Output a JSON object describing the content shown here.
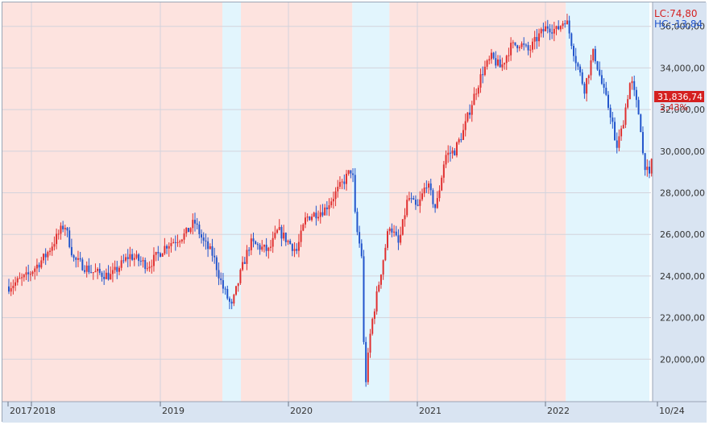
{
  "chart_data": {
    "type": "candlestick",
    "y_ticks": [
      "36,000,00",
      "34,000,00",
      "32,000,00",
      "30,000,00",
      "28,000,00",
      "26,000,00",
      "24,000,00",
      "22,000,00",
      "20,000,00"
    ],
    "y_tick_values": [
      36000,
      34000,
      32000,
      30000,
      28000,
      26000,
      24000,
      22000,
      20000
    ],
    "ylim": [
      18000,
      37150
    ],
    "x_labels": [
      "2017",
      "2018",
      "2019",
      "2020",
      "2021",
      "2022",
      "10/24"
    ],
    "legend": {
      "lc": "LC:74,80",
      "hc": "HC:-13,84"
    },
    "last_price": "31,836,74",
    "change_pct": "2,43%",
    "colors": {
      "up": "#e03030",
      "down": "#2255cc",
      "pink_band": "#fde3df",
      "blue_band": "#e2f5fd",
      "axis_bg": "#d9e4f2",
      "last_box": "#d42020"
    },
    "regimes": [
      {
        "from": "2017-01",
        "to": "2018-12",
        "color": "pink"
      },
      {
        "from": "2018-12",
        "to": "2019-02",
        "color": "blue"
      },
      {
        "from": "2019-02",
        "to": "2020-02",
        "color": "pink"
      },
      {
        "from": "2020-02",
        "to": "2020-06",
        "color": "blue"
      },
      {
        "from": "2020-06",
        "to": "2022-01",
        "color": "pink"
      },
      {
        "from": "2022-01",
        "to": "2022-10",
        "color": "blue"
      }
    ],
    "path": [
      {
        "d": "2017-01",
        "v": 23500
      },
      {
        "d": "2017-03",
        "v": 24000
      },
      {
        "d": "2017-05",
        "v": 25000
      },
      {
        "d": "2017-07",
        "v": 26500
      },
      {
        "d": "2017-08",
        "v": 24800
      },
      {
        "d": "2017-10",
        "v": 24200
      },
      {
        "d": "2017-12",
        "v": 24000
      },
      {
        "d": "2018-02",
        "v": 25000
      },
      {
        "d": "2018-04",
        "v": 24500
      },
      {
        "d": "2018-06",
        "v": 25500
      },
      {
        "d": "2018-08",
        "v": 26000
      },
      {
        "d": "2018-09",
        "v": 26600
      },
      {
        "d": "2018-10",
        "v": 25600
      },
      {
        "d": "2018-11",
        "v": 25000
      },
      {
        "d": "2018-12",
        "v": 23500
      },
      {
        "d": "2019-01",
        "v": 22500
      },
      {
        "d": "2019-02",
        "v": 24200
      },
      {
        "d": "2019-03",
        "v": 25600
      },
      {
        "d": "2019-05",
        "v": 25200
      },
      {
        "d": "2019-06",
        "v": 26200
      },
      {
        "d": "2019-08",
        "v": 25200
      },
      {
        "d": "2019-09",
        "v": 26800
      },
      {
        "d": "2019-11",
        "v": 27200
      },
      {
        "d": "2020-01",
        "v": 28500
      },
      {
        "d": "2020-02",
        "v": 29200
      },
      {
        "d": "2020-02",
        "v": 26500
      },
      {
        "d": "2020-03",
        "v": 25000
      },
      {
        "d": "2020-03",
        "v": 18500
      },
      {
        "d": "2020-04",
        "v": 21500
      },
      {
        "d": "2020-05",
        "v": 24000
      },
      {
        "d": "2020-06",
        "v": 26500
      },
      {
        "d": "2020-07",
        "v": 25500
      },
      {
        "d": "2020-08",
        "v": 27800
      },
      {
        "d": "2020-09",
        "v": 27200
      },
      {
        "d": "2020-10",
        "v": 28500
      },
      {
        "d": "2020-11",
        "v": 27200
      },
      {
        "d": "2020-12",
        "v": 29800
      },
      {
        "d": "2021-01",
        "v": 30000
      },
      {
        "d": "2021-02",
        "v": 31000
      },
      {
        "d": "2021-03",
        "v": 32500
      },
      {
        "d": "2021-04",
        "v": 33800
      },
      {
        "d": "2021-05",
        "v": 34500
      },
      {
        "d": "2021-06",
        "v": 34000
      },
      {
        "d": "2021-07",
        "v": 35000
      },
      {
        "d": "2021-08",
        "v": 35200
      },
      {
        "d": "2021-09",
        "v": 34800
      },
      {
        "d": "2021-10",
        "v": 35500
      },
      {
        "d": "2021-11",
        "v": 36000
      },
      {
        "d": "2021-12",
        "v": 35800
      },
      {
        "d": "2022-01",
        "v": 36400
      },
      {
        "d": "2022-02",
        "v": 34500
      },
      {
        "d": "2022-03",
        "v": 33000
      },
      {
        "d": "2022-04",
        "v": 34800
      },
      {
        "d": "2022-05",
        "v": 33000
      },
      {
        "d": "2022-06",
        "v": 31500
      },
      {
        "d": "2022-06",
        "v": 30000
      },
      {
        "d": "2022-07",
        "v": 31000
      },
      {
        "d": "2022-08",
        "v": 33500
      },
      {
        "d": "2022-09",
        "v": 31500
      },
      {
        "d": "2022-09",
        "v": 29600
      },
      {
        "d": "2022-10",
        "v": 28700
      },
      {
        "d": "2022-10",
        "v": 30000
      },
      {
        "d": "2022-10",
        "v": 31800
      }
    ]
  }
}
